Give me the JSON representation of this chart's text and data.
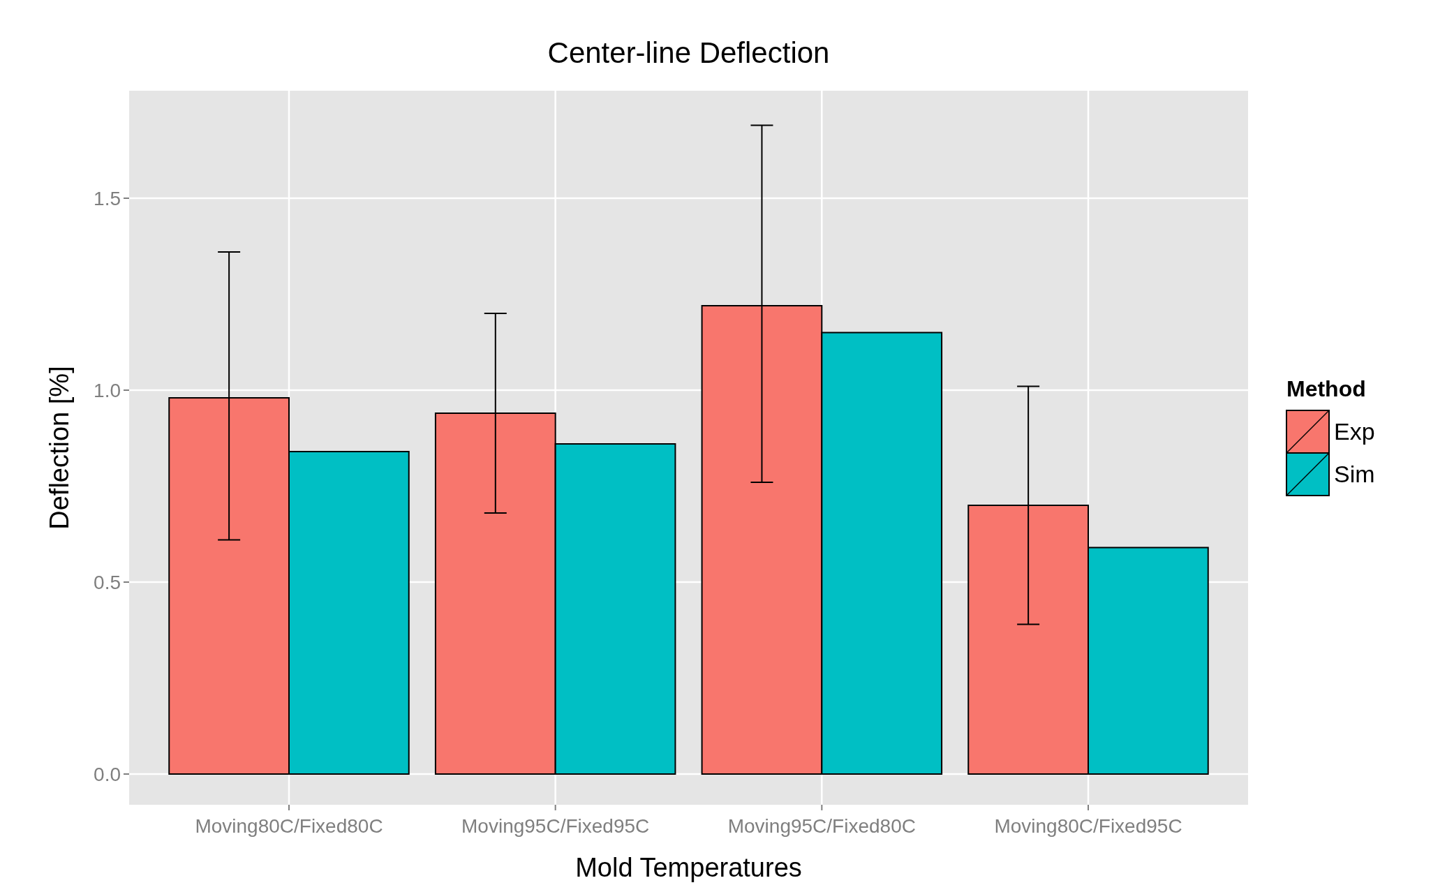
{
  "chart_data": {
    "type": "bar",
    "title": "Center-line Deflection",
    "xlabel": "Mold Temperatures",
    "ylabel": "Deflection [%]",
    "legend_title": "Method",
    "categories": [
      "Moving80C/Fixed80C",
      "Moving95C/Fixed95C",
      "Moving95C/Fixed80C",
      "Moving80C/Fixed95C"
    ],
    "series": [
      {
        "name": "Exp",
        "color": "#f8766d",
        "values": [
          0.98,
          0.94,
          1.22,
          0.7
        ],
        "errors": [
          [
            0.61,
            1.36
          ],
          [
            0.68,
            1.2
          ],
          [
            0.76,
            1.69
          ],
          [
            0.39,
            1.01
          ]
        ]
      },
      {
        "name": "Sim",
        "color": "#00bfc4",
        "values": [
          0.84,
          0.86,
          1.15,
          0.59
        ]
      }
    ],
    "ylim": [
      -0.08,
      1.78
    ],
    "yticks": [
      {
        "value": 0,
        "label": "0.0"
      },
      0.5,
      {
        "value": 1,
        "label": "1.0"
      },
      1.5
    ],
    "grid": true,
    "legend": "right"
  }
}
